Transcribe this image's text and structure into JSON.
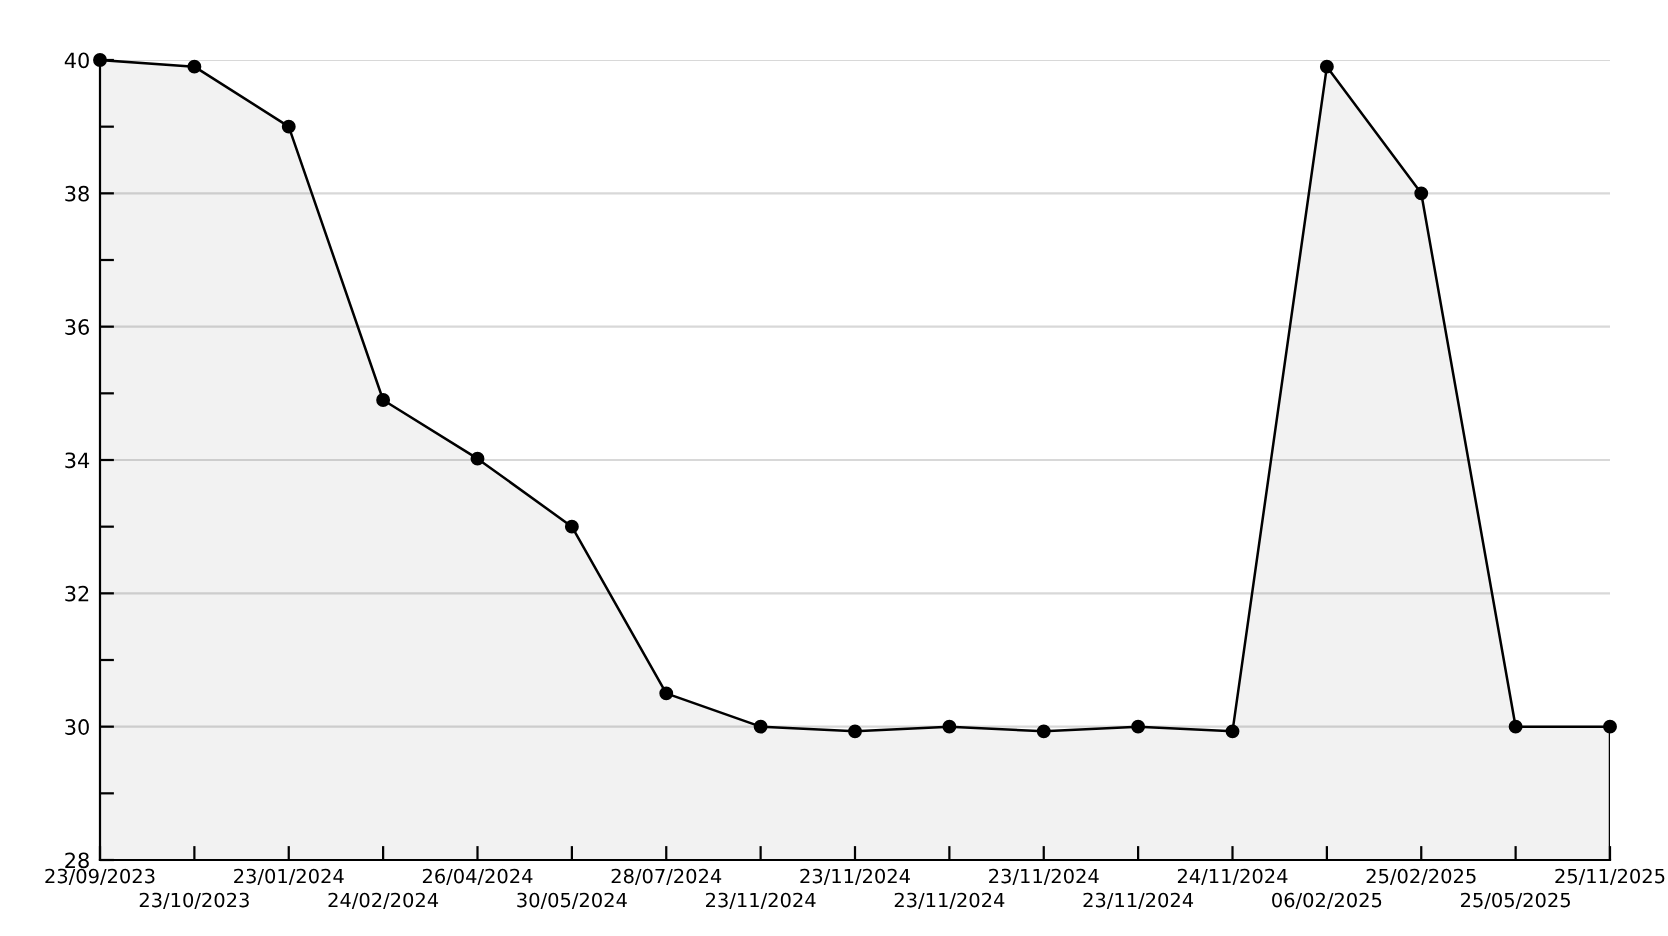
{
  "chart_data": {
    "type": "area",
    "categories": [
      "23/09/2023",
      "23/10/2023",
      "23/01/2024",
      "24/02/2024",
      "26/04/2024",
      "30/05/2024",
      "28/07/2024",
      "23/11/2024",
      "23/11/2024",
      "23/11/2024",
      "23/11/2024",
      "23/11/2024",
      "24/11/2024",
      "06/02/2025",
      "25/02/2025",
      "25/05/2025",
      "25/11/2025"
    ],
    "series": [
      {
        "color": "#000000",
        "values": [
          40,
          39.9,
          39,
          34.9,
          34.02,
          33,
          30.5,
          30,
          29.93,
          30,
          29.93,
          30,
          29.93,
          39.9,
          38,
          30,
          30
        ]
      }
    ],
    "ylim": [
      28,
      40
    ],
    "yticks": [
      28,
      {
        "value": 29,
        "label": null
      },
      30,
      {
        "value": 31,
        "label": null
      },
      32,
      {
        "value": 33,
        "label": null
      },
      34,
      {
        "value": 35,
        "label": null
      },
      36,
      {
        "value": 37,
        "label": null
      },
      38,
      {
        "value": 39,
        "label": null
      },
      40
    ],
    "grid": "y",
    "marker": "circle",
    "line_style": "solid"
  }
}
